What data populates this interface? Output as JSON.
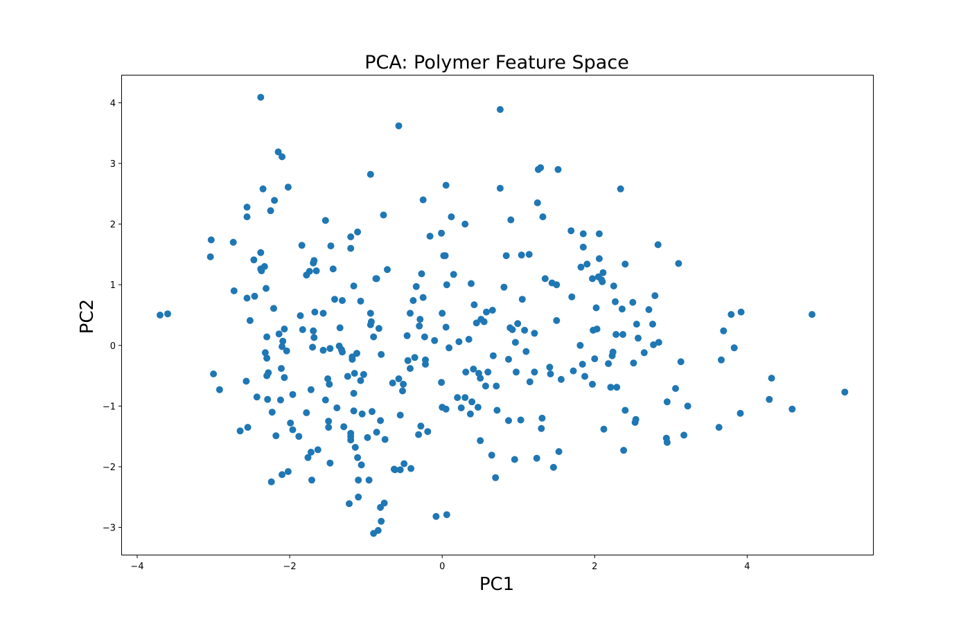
{
  "chart_data": {
    "type": "scatter",
    "title": "PCA: Polymer Feature Space",
    "xlabel": "PC1",
    "ylabel": "PC2",
    "xlim": [
      -4.2,
      5.65
    ],
    "ylim": [
      -3.45,
      4.45
    ],
    "xticks": [
      -4,
      -2,
      0,
      2,
      4
    ],
    "yticks": [
      -3,
      -2,
      -1,
      0,
      1,
      2,
      3,
      4
    ],
    "grid": false,
    "legend": "none",
    "point_color": "#1f77b4",
    "points": [
      [
        -3.7,
        0.5
      ],
      [
        -3.6,
        0.52
      ],
      [
        -3.03,
        1.74
      ],
      [
        -3.04,
        1.46
      ],
      [
        -3.0,
        -0.47
      ],
      [
        -2.92,
        -0.73
      ],
      [
        -2.74,
        1.7
      ],
      [
        -2.73,
        0.9
      ],
      [
        -2.65,
        -1.41
      ],
      [
        -2.56,
        2.28
      ],
      [
        -2.56,
        2.12
      ],
      [
        -2.56,
        0.78
      ],
      [
        -2.57,
        -0.59
      ],
      [
        -2.55,
        -1.35
      ],
      [
        -2.52,
        0.41
      ],
      [
        -2.47,
        1.41
      ],
      [
        -2.46,
        0.81
      ],
      [
        -2.43,
        -0.85
      ],
      [
        -2.38,
        4.09
      ],
      [
        -2.38,
        1.53
      ],
      [
        -2.38,
        1.26
      ],
      [
        -2.37,
        1.23
      ],
      [
        -2.35,
        2.58
      ],
      [
        -2.33,
        1.3
      ],
      [
        -2.32,
        -0.12
      ],
      [
        -2.31,
        0.94
      ],
      [
        -2.3,
        0.14
      ],
      [
        -2.3,
        -0.21
      ],
      [
        -2.3,
        -0.5
      ],
      [
        -2.29,
        -0.89
      ],
      [
        -2.28,
        -0.45
      ],
      [
        -2.25,
        2.22
      ],
      [
        -2.24,
        -2.25
      ],
      [
        -2.23,
        -1.1
      ],
      [
        -2.21,
        0.61
      ],
      [
        -2.2,
        2.39
      ],
      [
        -2.18,
        -1.49
      ],
      [
        -2.15,
        3.19
      ],
      [
        -2.14,
        0.19
      ],
      [
        -2.12,
        -0.9
      ],
      [
        -2.11,
        -0.38
      ],
      [
        -2.1,
        3.11
      ],
      [
        -2.09,
        0.07
      ],
      [
        -2.1,
        -0.02
      ],
      [
        -2.1,
        -2.13
      ],
      [
        -2.07,
        0.27
      ],
      [
        -2.07,
        -0.53
      ],
      [
        -2.04,
        -0.09
      ],
      [
        -2.02,
        2.61
      ],
      [
        -2.02,
        -2.08
      ],
      [
        -1.99,
        -1.28
      ],
      [
        -1.96,
        -0.81
      ],
      [
        -1.96,
        -1.39
      ],
      [
        -1.88,
        -1.5
      ],
      [
        -1.86,
        0.49
      ],
      [
        -1.84,
        1.65
      ],
      [
        -1.83,
        0.26
      ],
      [
        -1.78,
        1.16
      ],
      [
        -1.78,
        -1.11
      ],
      [
        -1.76,
        -1.85
      ],
      [
        -1.74,
        1.22
      ],
      [
        -1.72,
        -0.73
      ],
      [
        -1.72,
        -1.76
      ],
      [
        -1.71,
        -2.22
      ],
      [
        -1.7,
        -0.03
      ],
      [
        -1.69,
        1.36
      ],
      [
        -1.68,
        1.4
      ],
      [
        -1.69,
        0.24
      ],
      [
        -1.68,
        0.13
      ],
      [
        -1.67,
        0.55
      ],
      [
        -1.65,
        1.23
      ],
      [
        -1.63,
        -1.72
      ],
      [
        -1.56,
        0.53
      ],
      [
        -1.56,
        -0.08
      ],
      [
        -1.53,
        2.06
      ],
      [
        -1.53,
        -0.9
      ],
      [
        -1.5,
        -0.55
      ],
      [
        -1.49,
        -1.25
      ],
      [
        -1.49,
        -1.35
      ],
      [
        -1.48,
        -0.64
      ],
      [
        -1.47,
        -1.94
      ],
      [
        -1.47,
        -0.05
      ],
      [
        -1.46,
        1.64
      ],
      [
        -1.43,
        1.26
      ],
      [
        -1.41,
        0.76
      ],
      [
        -1.38,
        -1.03
      ],
      [
        -1.35,
        -0.01
      ],
      [
        -1.34,
        0.29
      ],
      [
        -1.32,
        -0.07
      ],
      [
        -1.31,
        0.74
      ],
      [
        -1.31,
        -0.11
      ],
      [
        -1.29,
        -1.34
      ],
      [
        -1.24,
        -0.51
      ],
      [
        -1.22,
        -2.61
      ],
      [
        -1.2,
        1.79
      ],
      [
        -1.2,
        1.6
      ],
      [
        -1.2,
        -1.45
      ],
      [
        -1.2,
        -1.5
      ],
      [
        -1.2,
        -1.56
      ],
      [
        -1.18,
        -0.23
      ],
      [
        -1.18,
        -0.19
      ],
      [
        -1.16,
        0.98
      ],
      [
        -1.16,
        -0.79
      ],
      [
        -1.16,
        -1.08
      ],
      [
        -1.15,
        -0.46
      ],
      [
        -1.14,
        -1.68
      ],
      [
        -1.12,
        -0.13
      ],
      [
        -1.11,
        1.87
      ],
      [
        -1.11,
        -1.85
      ],
      [
        -1.1,
        -2.22
      ],
      [
        -1.1,
        -2.5
      ],
      [
        -1.07,
        0.73
      ],
      [
        -1.07,
        -0.58
      ],
      [
        -1.06,
        -1.97
      ],
      [
        -1.05,
        -1.13
      ],
      [
        -1.03,
        -0.48
      ],
      [
        -0.98,
        -1.52
      ],
      [
        -0.96,
        -2.22
      ],
      [
        -0.94,
        2.82
      ],
      [
        -0.94,
        0.53
      ],
      [
        -0.94,
        0.34
      ],
      [
        -0.93,
        0.39
      ],
      [
        -0.92,
        -1.09
      ],
      [
        -0.9,
        0.14
      ],
      [
        -0.9,
        -3.1
      ],
      [
        -0.87,
        1.1
      ],
      [
        -0.86,
        1.1
      ],
      [
        -0.86,
        -1.43
      ],
      [
        -0.84,
        -3.05
      ],
      [
        -0.83,
        0.28
      ],
      [
        -0.81,
        -1.24
      ],
      [
        -0.81,
        -2.67
      ],
      [
        -0.8,
        -2.9
      ],
      [
        -0.8,
        -0.15
      ],
      [
        -0.77,
        2.15
      ],
      [
        -0.76,
        -2.6
      ],
      [
        -0.75,
        -1.55
      ],
      [
        -0.72,
        1.25
      ],
      [
        -0.65,
        -0.62
      ],
      [
        -0.63,
        -2.04
      ],
      [
        -0.62,
        -2.05
      ],
      [
        -0.57,
        3.62
      ],
      [
        -0.57,
        -0.55
      ],
      [
        -0.55,
        -1.15
      ],
      [
        -0.55,
        -2.05
      ],
      [
        -0.52,
        -0.75
      ],
      [
        -0.51,
        -0.64
      ],
      [
        -0.5,
        -1.95
      ],
      [
        -0.46,
        0.16
      ],
      [
        -0.45,
        -0.25
      ],
      [
        -0.42,
        0.53
      ],
      [
        -0.42,
        -0.38
      ],
      [
        -0.41,
        -2.03
      ],
      [
        -0.38,
        0.74
      ],
      [
        -0.36,
        -0.2
      ],
      [
        -0.34,
        0.97
      ],
      [
        -0.31,
        -1.47
      ],
      [
        -0.3,
        0.32
      ],
      [
        -0.29,
        0.43
      ],
      [
        -0.28,
        -1.33
      ],
      [
        -0.27,
        1.18
      ],
      [
        -0.25,
        2.4
      ],
      [
        -0.25,
        0.79
      ],
      [
        -0.23,
        0.14
      ],
      [
        -0.22,
        -0.24
      ],
      [
        -0.22,
        -0.31
      ],
      [
        -0.19,
        -1.42
      ],
      [
        -0.16,
        1.8
      ],
      [
        -0.1,
        0.08
      ],
      [
        -0.08,
        -2.82
      ],
      [
        -0.01,
        1.85
      ],
      [
        -0.01,
        -0.61
      ],
      [
        0.0,
        0.53
      ],
      [
        0.0,
        -1.02
      ],
      [
        0.02,
        1.48
      ],
      [
        0.04,
        1.48
      ],
      [
        0.05,
        2.64
      ],
      [
        0.05,
        0.3
      ],
      [
        0.05,
        -1.05
      ],
      [
        0.06,
        1.0
      ],
      [
        0.06,
        -2.79
      ],
      [
        0.09,
        -0.04
      ],
      [
        0.12,
        2.12
      ],
      [
        0.15,
        1.17
      ],
      [
        0.2,
        -0.86
      ],
      [
        0.22,
        0.06
      ],
      [
        0.25,
        -1.03
      ],
      [
        0.3,
        2.0
      ],
      [
        0.3,
        -0.86
      ],
      [
        0.31,
        -0.44
      ],
      [
        0.35,
        0.1
      ],
      [
        0.37,
        -1.13
      ],
      [
        0.38,
        1.02
      ],
      [
        0.39,
        -0.93
      ],
      [
        0.41,
        -0.39
      ],
      [
        0.42,
        0.67
      ],
      [
        0.45,
        0.37
      ],
      [
        0.47,
        -1.02
      ],
      [
        0.48,
        -0.46
      ],
      [
        0.5,
        -1.57
      ],
      [
        0.5,
        -0.54
      ],
      [
        0.51,
        0.43
      ],
      [
        0.55,
        0.39
      ],
      [
        0.57,
        -0.67
      ],
      [
        0.58,
        0.55
      ],
      [
        0.6,
        -0.44
      ],
      [
        0.65,
        -1.81
      ],
      [
        0.66,
        0.58
      ],
      [
        0.67,
        -0.17
      ],
      [
        0.7,
        -2.18
      ],
      [
        0.71,
        -0.67
      ],
      [
        0.72,
        -1.07
      ],
      [
        0.76,
        3.89
      ],
      [
        0.76,
        2.59
      ],
      [
        0.81,
        0.96
      ],
      [
        0.84,
        1.48
      ],
      [
        0.87,
        -0.23
      ],
      [
        0.87,
        -1.24
      ],
      [
        0.89,
        0.29
      ],
      [
        0.9,
        2.07
      ],
      [
        0.92,
        0.26
      ],
      [
        0.95,
        -1.88
      ],
      [
        0.96,
        0.05
      ],
      [
        0.97,
        -0.44
      ],
      [
        0.99,
        0.36
      ],
      [
        1.03,
        -1.23
      ],
      [
        1.04,
        1.49
      ],
      [
        1.05,
        0.76
      ],
      [
        1.08,
        0.25
      ],
      [
        1.1,
        -0.1
      ],
      [
        1.14,
        1.5
      ],
      [
        1.15,
        -0.6
      ],
      [
        1.21,
        0.2
      ],
      [
        1.21,
        -0.44
      ],
      [
        1.24,
        -1.86
      ],
      [
        1.25,
        2.35
      ],
      [
        1.26,
        2.9
      ],
      [
        1.29,
        2.93
      ],
      [
        1.3,
        -1.37
      ],
      [
        1.31,
        -1.2
      ],
      [
        1.32,
        2.12
      ],
      [
        1.35,
        1.1
      ],
      [
        1.41,
        -0.36
      ],
      [
        1.42,
        -0.47
      ],
      [
        1.44,
        1.03
      ],
      [
        1.46,
        -2.01
      ],
      [
        1.5,
        1.0
      ],
      [
        1.5,
        0.41
      ],
      [
        1.52,
        2.9
      ],
      [
        1.53,
        -1.75
      ],
      [
        1.56,
        -0.56
      ],
      [
        1.69,
        1.89
      ],
      [
        1.7,
        0.8
      ],
      [
        1.72,
        -0.42
      ],
      [
        1.81,
        0.0
      ],
      [
        1.82,
        1.29
      ],
      [
        1.84,
        -0.31
      ],
      [
        1.85,
        1.84
      ],
      [
        1.85,
        1.62
      ],
      [
        1.87,
        -0.51
      ],
      [
        1.9,
        1.34
      ],
      [
        1.97,
        1.1
      ],
      [
        1.97,
        -0.64
      ],
      [
        1.98,
        0.25
      ],
      [
        2.0,
        -0.22
      ],
      [
        2.02,
        0.62
      ],
      [
        2.03,
        0.27
      ],
      [
        2.05,
        1.13
      ],
      [
        2.06,
        1.43
      ],
      [
        2.06,
        1.84
      ],
      [
        2.09,
        1.08
      ],
      [
        2.1,
        1.05
      ],
      [
        2.11,
        1.2
      ],
      [
        2.12,
        -1.38
      ],
      [
        2.18,
        -0.3
      ],
      [
        2.21,
        -0.69
      ],
      [
        2.23,
        -0.17
      ],
      [
        2.24,
        -0.11
      ],
      [
        2.25,
        0.98
      ],
      [
        2.27,
        0.72
      ],
      [
        2.28,
        0.18
      ],
      [
        2.29,
        -0.69
      ],
      [
        2.34,
        2.58
      ],
      [
        2.36,
        0.6
      ],
      [
        2.37,
        0.18
      ],
      [
        2.38,
        -1.73
      ],
      [
        2.4,
        1.34
      ],
      [
        2.4,
        -1.07
      ],
      [
        2.5,
        0.71
      ],
      [
        2.51,
        -0.29
      ],
      [
        2.53,
        -1.27
      ],
      [
        2.54,
        -1.22
      ],
      [
        2.55,
        0.35
      ],
      [
        2.57,
        0.12
      ],
      [
        2.65,
        -0.12
      ],
      [
        2.71,
        0.59
      ],
      [
        2.76,
        0.35
      ],
      [
        2.77,
        0.01
      ],
      [
        2.79,
        0.82
      ],
      [
        2.83,
        1.66
      ],
      [
        2.84,
        0.05
      ],
      [
        2.94,
        -1.53
      ],
      [
        2.95,
        -1.6
      ],
      [
        2.95,
        -0.93
      ],
      [
        3.06,
        -0.71
      ],
      [
        3.1,
        1.35
      ],
      [
        3.13,
        -0.27
      ],
      [
        3.17,
        -1.48
      ],
      [
        3.22,
        -1.0
      ],
      [
        3.63,
        -1.35
      ],
      [
        3.66,
        -0.24
      ],
      [
        3.69,
        0.24
      ],
      [
        3.79,
        0.51
      ],
      [
        3.83,
        -0.04
      ],
      [
        3.91,
        -1.12
      ],
      [
        3.92,
        0.55
      ],
      [
        4.29,
        -0.89
      ],
      [
        4.32,
        -0.54
      ],
      [
        4.59,
        -1.05
      ],
      [
        4.85,
        0.51
      ],
      [
        5.28,
        -0.77
      ]
    ]
  }
}
